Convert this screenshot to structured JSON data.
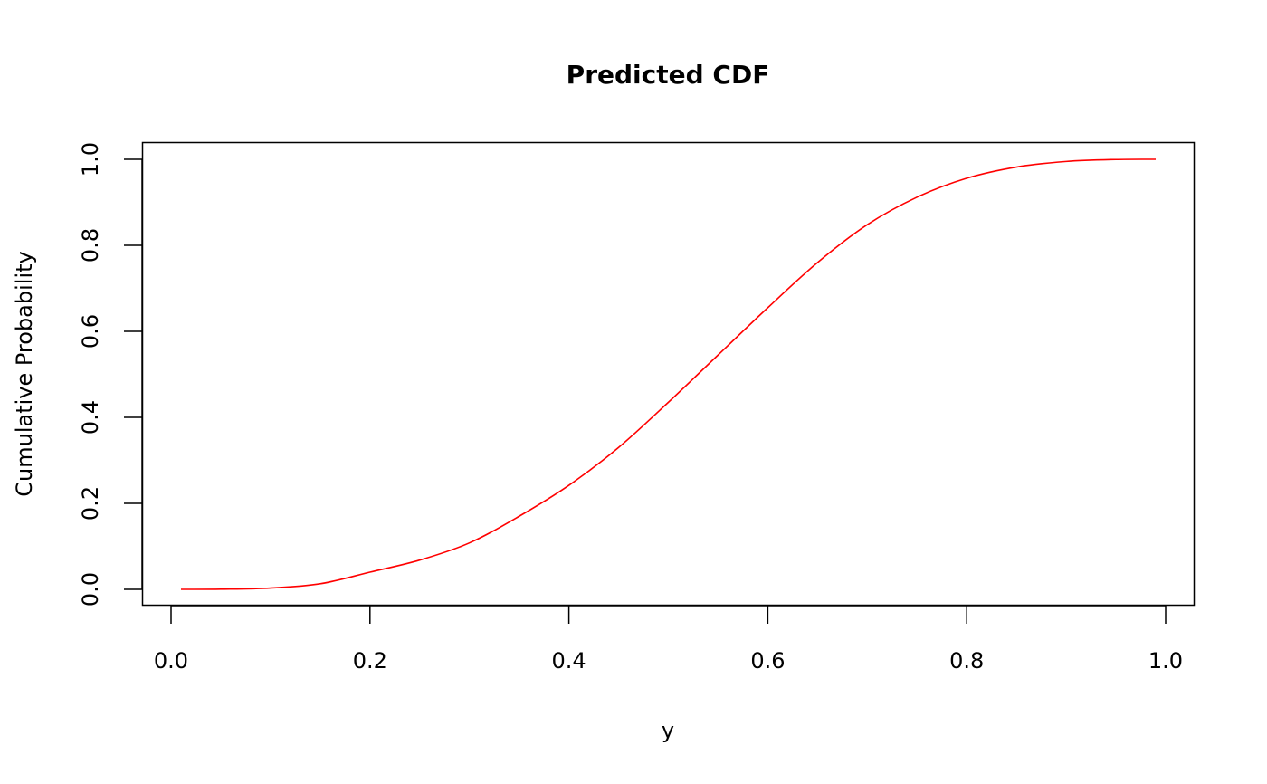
{
  "chart_data": {
    "type": "line",
    "title": "Predicted CDF",
    "xlabel": "y",
    "ylabel": "Cumulative Probability",
    "xlim": [
      -0.03,
      1.03
    ],
    "ylim": [
      -0.04,
      1.04
    ],
    "x_ticks": [
      0.0,
      0.2,
      0.4,
      0.6,
      0.8,
      1.0
    ],
    "x_tick_labels": [
      "0.0",
      "0.2",
      "0.4",
      "0.6",
      "0.8",
      "1.0"
    ],
    "y_ticks": [
      0.0,
      0.2,
      0.4,
      0.6,
      0.8,
      1.0
    ],
    "y_tick_labels": [
      "0.0",
      "0.2",
      "0.4",
      "0.6",
      "0.8",
      "1.0"
    ],
    "grid": false,
    "series": [
      {
        "name": "Predicted CDF",
        "color": "#ff0000",
        "x": [
          0.01,
          0.05,
          0.1,
          0.15,
          0.2,
          0.25,
          0.3,
          0.35,
          0.4,
          0.45,
          0.5,
          0.55,
          0.6,
          0.65,
          0.7,
          0.75,
          0.8,
          0.85,
          0.9,
          0.95,
          0.99
        ],
        "y": [
          0.0,
          0.0003,
          0.003,
          0.013,
          0.04,
          0.068,
          0.108,
          0.17,
          0.242,
          0.33,
          0.435,
          0.545,
          0.655,
          0.76,
          0.848,
          0.912,
          0.956,
          0.982,
          0.995,
          0.9995,
          1.0
        ]
      }
    ]
  }
}
